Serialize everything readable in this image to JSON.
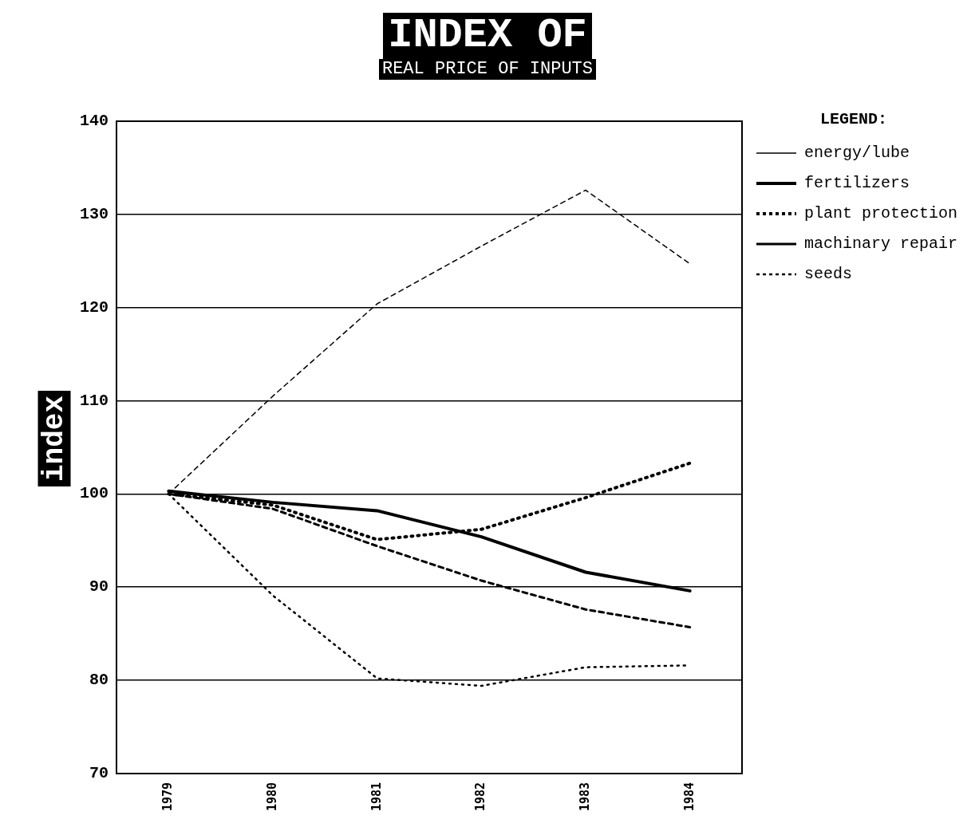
{
  "chart_data": {
    "type": "line",
    "title": "INDEX OF",
    "subtitle": "REAL PRICE OF INPUTS",
    "ylabel": "index",
    "legend_title": "LEGEND:",
    "categories": [
      "1979",
      "1980",
      "1981",
      "1982",
      "1983",
      "1984"
    ],
    "series": [
      {
        "name": "energy/lube",
        "color": "#000000",
        "line_style": "dashed",
        "values": [
          100,
          110.5,
          120.4,
          126.6,
          132.6,
          124.7
        ]
      },
      {
        "name": "fertilizers",
        "color": "#000000",
        "line_style": "solid",
        "values": [
          100.3,
          99.1,
          98.2,
          95.4,
          91.6,
          89.6
        ]
      },
      {
        "name": "plant protection",
        "color": "#000000",
        "line_style": "dotted",
        "values": [
          100,
          98.8,
          95.1,
          96.2,
          99.6,
          103.3
        ]
      },
      {
        "name": "machinary repair",
        "color": "#000000",
        "line_style": "dashed",
        "values": [
          100,
          98.4,
          94.4,
          90.7,
          87.6,
          85.7
        ]
      },
      {
        "name": "seeds",
        "color": "#000000",
        "line_style": "dotted",
        "values": [
          100,
          89.1,
          80.2,
          79.4,
          81.4,
          81.6
        ]
      }
    ],
    "ylim": [
      70,
      140
    ],
    "yticks": [
      70,
      80,
      90,
      100,
      110,
      120,
      130,
      140
    ],
    "grid": "y",
    "legend": "right",
    "marker": "none"
  }
}
